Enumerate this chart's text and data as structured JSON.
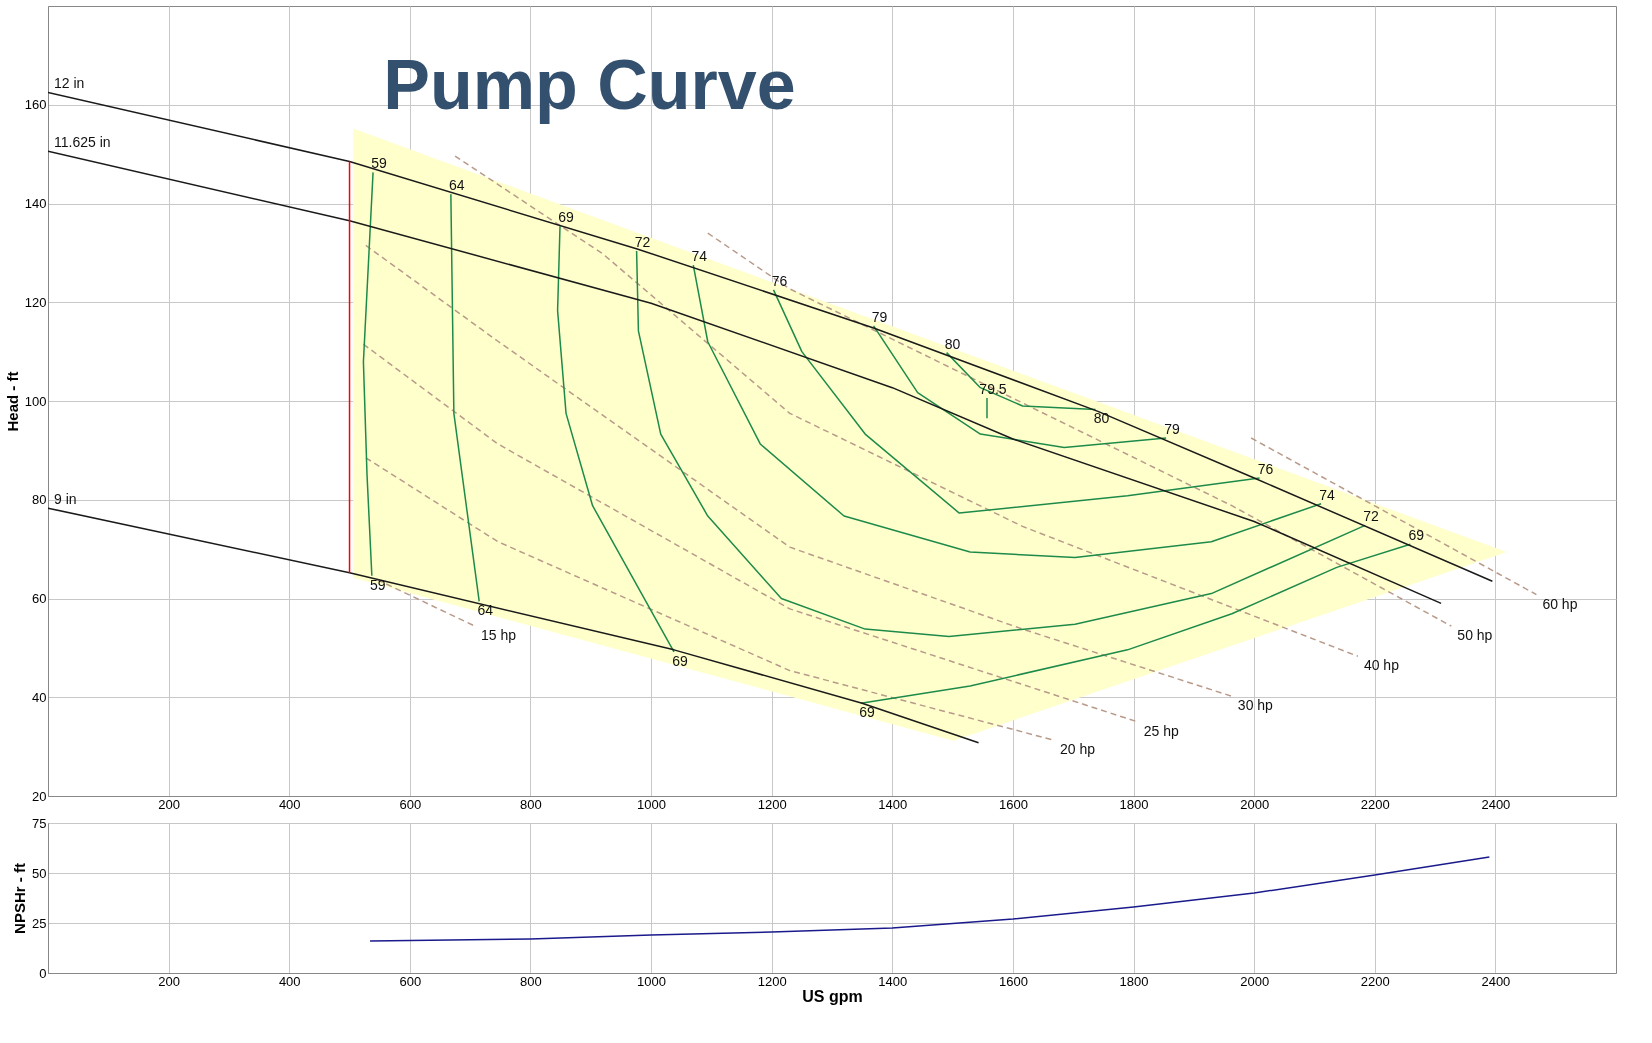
{
  "chart_data": [
    {
      "type": "line",
      "title": "Pump Curve",
      "ylabel": "Head - ft",
      "xlim": [
        0,
        2600
      ],
      "ylim": [
        20,
        180
      ],
      "xticks": [
        200,
        400,
        600,
        800,
        1000,
        1200,
        1400,
        1600,
        1800,
        2000,
        2200,
        2400
      ],
      "yticks": [
        20,
        40,
        60,
        80,
        100,
        120,
        140,
        160
      ],
      "grid": true,
      "series": [
        {
          "type": "area",
          "color": "#ffffcc",
          "x": [
            506,
            2419,
            1501,
            506
          ],
          "values": [
            155.2,
            69.4,
            31.2,
            64.2
          ]
        },
        {
          "type": "line",
          "color": "#b89a8a",
          "line_style": "dashed",
          "x": [
            1995,
            2468
          ],
          "values": [
            92.5,
            60.8
          ]
        },
        {
          "type": "line",
          "color": "#b89a8a",
          "line_style": "dashed",
          "x": [
            1094,
            1230,
            1616,
            1963,
            2327
          ],
          "values": [
            134,
            122.7,
            99.6,
            78.8,
            54.4
          ]
        },
        {
          "type": "line",
          "color": "#b89a8a",
          "line_style": "dashed",
          "x": [
            675,
            920,
            1230,
            1616,
            2172
          ],
          "values": [
            149.6,
            129.8,
            97.5,
            74.6,
            48.3
          ]
        },
        {
          "type": "line",
          "color": "#b89a8a",
          "line_style": "dashed",
          "x": [
            527,
            746,
            1230,
            1616,
            1963
          ],
          "values": [
            131.5,
            112.1,
            70.4,
            53.8,
            40.2
          ]
        },
        {
          "type": "line",
          "color": "#b89a8a",
          "line_style": "dashed",
          "x": [
            523,
            746,
            1230,
            1807
          ],
          "values": [
            111.5,
            91.3,
            57.9,
            35
          ]
        },
        {
          "type": "line",
          "color": "#b89a8a",
          "line_style": "dashed",
          "x": [
            527,
            746,
            1230,
            1668
          ],
          "values": [
            88.5,
            71.5,
            45.4,
            31.3
          ]
        },
        {
          "type": "line",
          "color": "#b89a8a",
          "line_style": "dashed",
          "x": [
            546,
            708
          ],
          "values": [
            63.8,
            54.4
          ]
        },
        {
          "type": "line",
          "color": "#1e8a4a",
          "x": [
            539,
            523,
            529,
            537
          ],
          "values": [
            146.3,
            107.9,
            85,
            64.6
          ]
        },
        {
          "type": "line",
          "color": "#1e8a4a",
          "x": [
            668,
            673,
            715
          ],
          "values": [
            141.9,
            97.5,
            59.4
          ]
        },
        {
          "type": "line",
          "color": "#1e8a4a",
          "x": [
            849,
            845,
            859,
            903,
            1038
          ],
          "values": [
            135.4,
            118.3,
            97.5,
            78.8,
            49.2
          ]
        },
        {
          "type": "line",
          "color": "#1e8a4a",
          "x": [
            1348,
            1529,
            1790,
            1963,
            2137,
            2259
          ],
          "values": [
            38.8,
            42.3,
            49.6,
            56.9,
            66.3,
            71
          ]
        },
        {
          "type": "line",
          "color": "#1e8a4a",
          "x": [
            976,
            979,
            1016,
            1094,
            1216,
            1355,
            1494,
            1703,
            1929,
            2184
          ],
          "values": [
            130.4,
            114.2,
            93.3,
            76.7,
            60,
            53.8,
            52.3,
            54.8,
            61,
            74.8
          ]
        },
        {
          "type": "line",
          "color": "#1e8a4a",
          "x": [
            1070,
            1094,
            1181,
            1320,
            1529,
            1703,
            1929,
            2111
          ],
          "values": [
            127.5,
            112,
            91.3,
            76.7,
            69.4,
            68.3,
            71.5,
            79.2
          ]
        },
        {
          "type": "line",
          "color": "#1e8a4a",
          "x": [
            1203,
            1250,
            1355,
            1511,
            1790,
            2009
          ],
          "values": [
            122.5,
            110,
            93.3,
            77.3,
            80.8,
            84.4
          ]
        },
        {
          "type": "line",
          "color": "#1e8a4a",
          "x": [
            1369,
            1442,
            1546,
            1685,
            1854
          ],
          "values": [
            115.2,
            101.7,
            93.3,
            90.6,
            92.5
          ]
        },
        {
          "type": "line",
          "color": "#1e8a4a",
          "x": [
            1490,
            1546,
            1616,
            1737
          ],
          "values": [
            109.8,
            102.7,
            99,
            98.3
          ]
        },
        {
          "type": "line",
          "color": "#1e8a4a",
          "x": [
            1557,
            1557
          ],
          "values": [
            100.6,
            96.5
          ]
        },
        {
          "type": "line",
          "color": "#1a1a1a",
          "x": [
            0,
            500,
            977,
            1369,
            1741,
            2000,
            2395
          ],
          "values": [
            162.5,
            148.5,
            130.8,
            114.8,
            97.9,
            84.4,
            63.5
          ]
        },
        {
          "type": "line",
          "color": "#1a1a1a",
          "x": [
            0,
            500,
            1000,
            1400,
            1600,
            2000,
            2310
          ],
          "values": [
            150.6,
            136.5,
            119.8,
            102.7,
            92.3,
            75.6,
            59
          ]
        },
        {
          "type": "line",
          "color": "#1a1a1a",
          "x": [
            0,
            500,
            1038,
            1350,
            1543
          ],
          "values": [
            78.3,
            65.2,
            49.6,
            38.8,
            30.8
          ]
        },
        {
          "type": "line",
          "color": "#ff0000",
          "x": [
            500,
            500
          ],
          "values": [
            65.2,
            148.5
          ]
        }
      ],
      "annotations": [
        {
          "text": "59",
          "x": 539,
          "y": 146.3
        },
        {
          "text": "64",
          "x": 668,
          "y": 141.9
        },
        {
          "text": "69",
          "x": 849,
          "y": 135.4
        },
        {
          "text": "72",
          "x": 976,
          "y": 130.4
        },
        {
          "text": "74",
          "x": 1070,
          "y": 127.5
        },
        {
          "text": "76",
          "x": 1203,
          "y": 122.5
        },
        {
          "text": "79",
          "x": 1369,
          "y": 115.2
        },
        {
          "text": "80",
          "x": 1490,
          "y": 109.8
        },
        {
          "text": "79.5",
          "x": 1557,
          "y": 100.6
        },
        {
          "text": "80",
          "x": 1737,
          "y": 98.3
        },
        {
          "text": "79",
          "x": 1854,
          "y": 92.5
        },
        {
          "text": "76",
          "x": 2009,
          "y": 84.4
        },
        {
          "text": "74",
          "x": 2111,
          "y": 79.2
        },
        {
          "text": "72",
          "x": 2184,
          "y": 74.8
        },
        {
          "text": "69",
          "x": 2259,
          "y": 71
        },
        {
          "text": "59",
          "x": 537,
          "y": 64.6
        },
        {
          "text": "64",
          "x": 715,
          "y": 59.4
        },
        {
          "text": "69",
          "x": 1038,
          "y": 49.2
        },
        {
          "text": "69",
          "x": 1348,
          "y": 38.8
        },
        {
          "text": "15 hp",
          "x": 708,
          "y": 54.4
        },
        {
          "text": "20 hp",
          "x": 1668,
          "y": 31.3
        },
        {
          "text": "25 hp",
          "x": 1807,
          "y": 35
        },
        {
          "text": "30 hp",
          "x": 1963,
          "y": 40.2
        },
        {
          "text": "40 hp",
          "x": 2172,
          "y": 48.3
        },
        {
          "text": "50 hp",
          "x": 2327,
          "y": 54.4
        },
        {
          "text": "60 hp",
          "x": 2468,
          "y": 60.8
        },
        {
          "text": "12 in",
          "x": 0,
          "y": 162.5
        },
        {
          "text": "11.625 in",
          "x": 0,
          "y": 150.6
        },
        {
          "text": "9 in",
          "x": 0,
          "y": 78.3
        }
      ]
    },
    {
      "type": "line",
      "xlabel": "US gpm",
      "ylabel": "NPSHr - ft",
      "xlim": [
        0,
        2600
      ],
      "ylim": [
        0,
        75
      ],
      "xticks": [
        200,
        400,
        600,
        800,
        1000,
        1200,
        1400,
        1600,
        1800,
        2000,
        2200,
        2400
      ],
      "yticks": [
        0,
        25,
        50,
        75
      ],
      "grid": true,
      "series": [
        {
          "type": "line",
          "color": "#1a1a8c",
          "x": [
            534,
            800,
            1000,
            1200,
            1400,
            1600,
            1800,
            2000,
            2200,
            2390
          ],
          "values": [
            16,
            17,
            19,
            20.5,
            22.5,
            27,
            33,
            40,
            49,
            58
          ]
        }
      ]
    }
  ]
}
